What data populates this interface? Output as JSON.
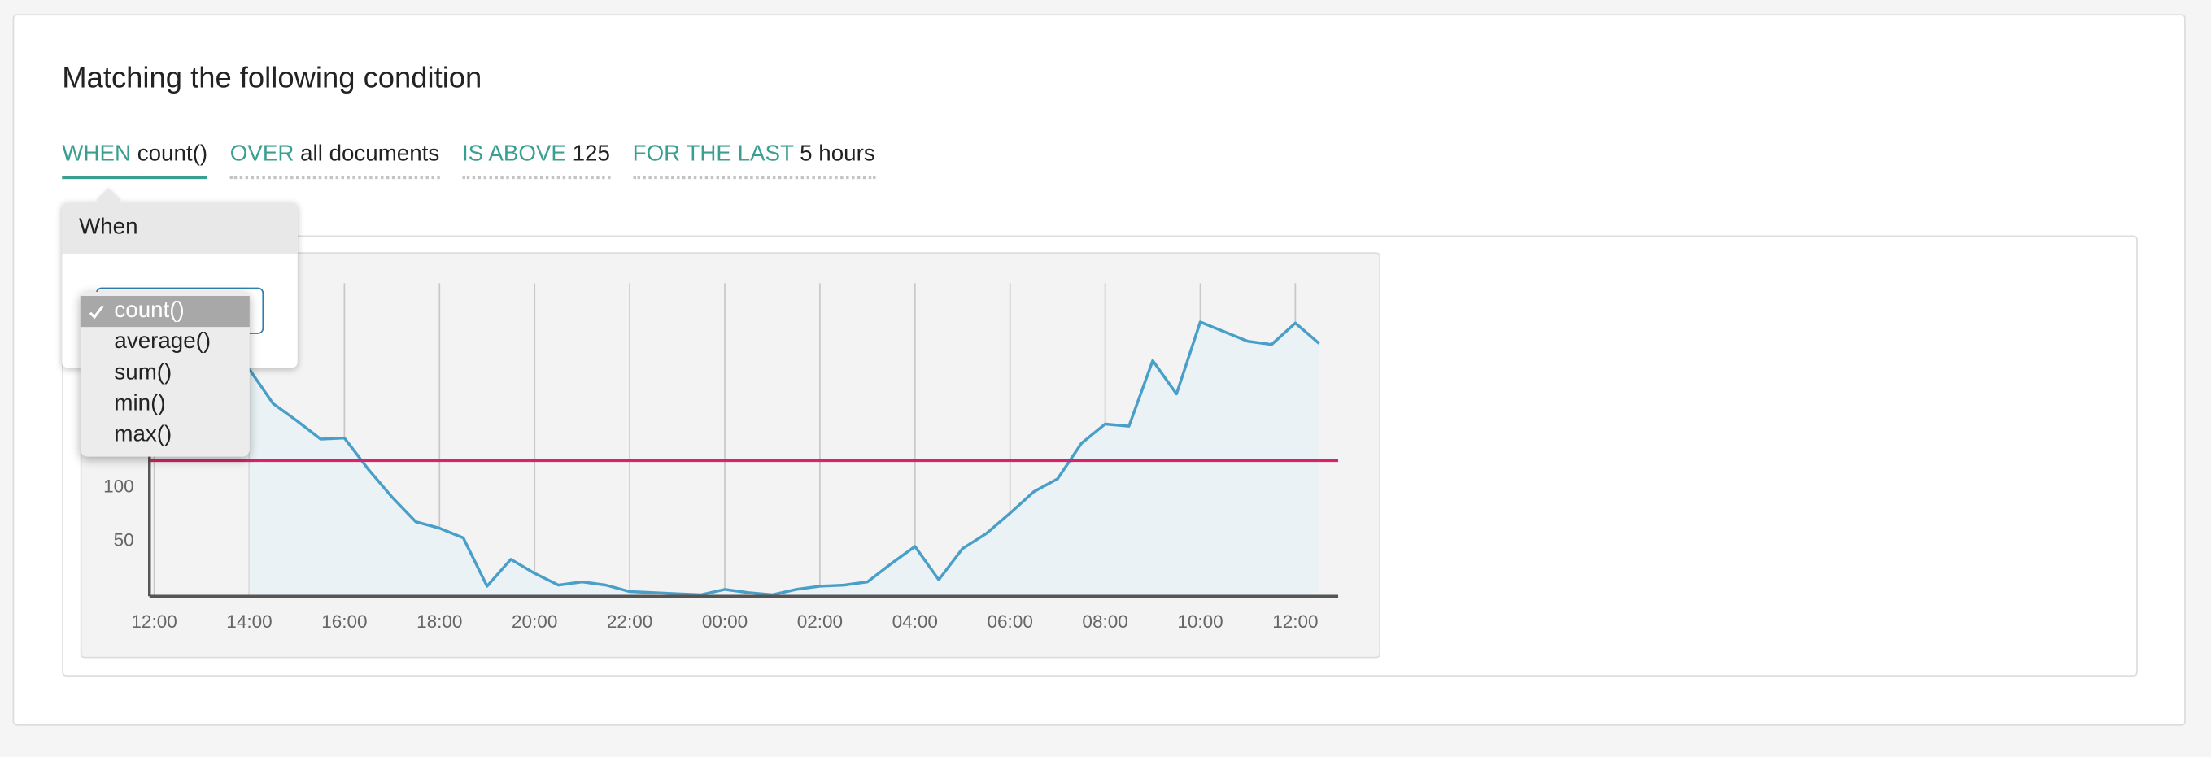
{
  "header": {
    "title": "Matching the following condition"
  },
  "condition": [
    {
      "keyword": "WHEN",
      "value": "count()"
    },
    {
      "keyword": "OVER",
      "value": "all documents"
    },
    {
      "keyword": "IS ABOVE",
      "value": "125"
    },
    {
      "keyword": "FOR THE LAST",
      "value": "5 hours"
    }
  ],
  "popover": {
    "title": "When",
    "options": [
      "count()",
      "average()",
      "sum()",
      "min()",
      "max()"
    ]
  },
  "chart_data": {
    "type": "line",
    "color": "#4a9fc8",
    "area_color": "#eaf2f6",
    "x": [
      2,
      2.5,
      3,
      3.5,
      4,
      4.5,
      5,
      5.5,
      6,
      6.5,
      7,
      7.5,
      8,
      8.5,
      9,
      9.5,
      10,
      10.5,
      11,
      11.5,
      12,
      12.5,
      13,
      13.5,
      14,
      14.5,
      15,
      15.5,
      16,
      16.5,
      17,
      17.5,
      18,
      18.5,
      19,
      19.5,
      20,
      20.5,
      21,
      21.5,
      22,
      22.5,
      23,
      23.5,
      24,
      24.5
    ],
    "values": [
      210,
      178,
      162,
      145,
      146,
      117,
      91,
      68,
      62,
      53,
      8,
      33,
      20,
      9,
      12,
      9,
      3,
      2,
      1,
      0,
      5,
      2,
      0,
      5,
      8,
      9,
      12,
      29,
      45,
      14,
      43,
      57,
      76,
      96,
      108,
      141,
      159,
      157,
      218,
      187,
      254,
      245,
      236,
      233,
      253,
      234
    ],
    "xlim": [
      -0.1,
      24.9
    ],
    "xticks": [
      {
        "value": 0,
        "label": "12:00"
      },
      {
        "value": 2,
        "label": "14:00"
      },
      {
        "value": 4,
        "label": "16:00"
      },
      {
        "value": 6,
        "label": "18:00"
      },
      {
        "value": 8,
        "label": "20:00"
      },
      {
        "value": 10,
        "label": "22:00"
      },
      {
        "value": 12,
        "label": "00:00"
      },
      {
        "value": 14,
        "label": "02:00"
      },
      {
        "value": 16,
        "label": "04:00"
      },
      {
        "value": 18,
        "label": "06:00"
      },
      {
        "value": 20,
        "label": "08:00"
      },
      {
        "value": 22,
        "label": "10:00"
      },
      {
        "value": 24,
        "label": "12:00"
      }
    ],
    "ylim": [
      0,
      290
    ],
    "yticks": [
      50,
      100
    ],
    "grid": true,
    "threshold": 125,
    "threshold_color": "#d4246a"
  }
}
